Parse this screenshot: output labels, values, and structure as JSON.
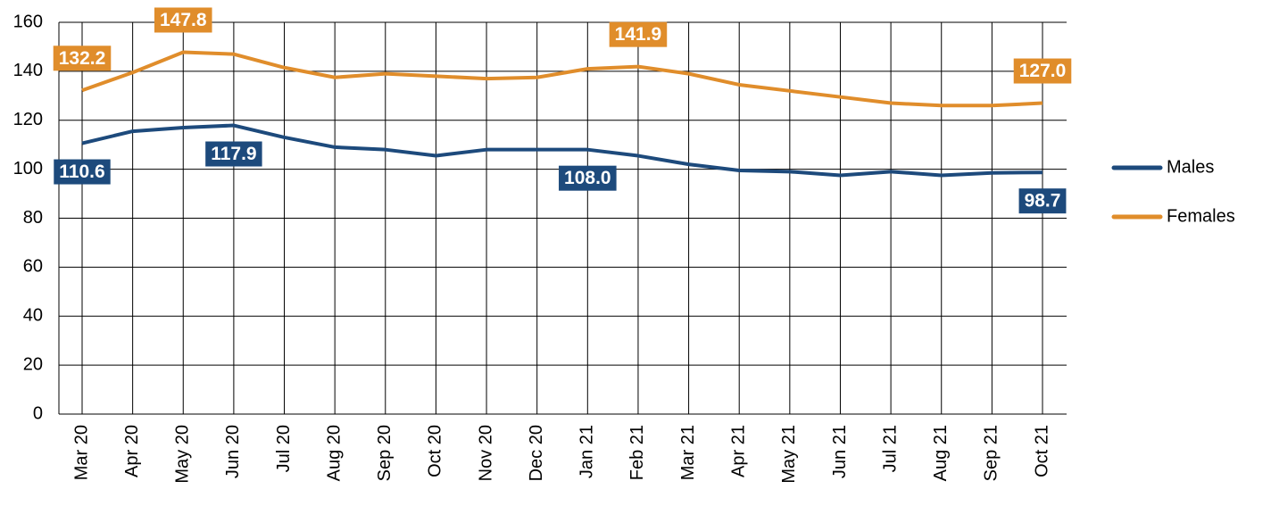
{
  "chart_data": {
    "type": "line",
    "categories": [
      "Mar 20",
      "Apr 20",
      "May 20",
      "Jun 20",
      "Jul 20",
      "Aug 20",
      "Sep 20",
      "Oct 20",
      "Nov 20",
      "Dec 20",
      "Jan 21",
      "Feb 21",
      "Mar 21",
      "Apr 21",
      "May 21",
      "Jun 21",
      "Jul 21",
      "Aug 21",
      "Sep 21",
      "Oct 21"
    ],
    "series": [
      {
        "name": "Males",
        "color": "#1d4a7c",
        "values": [
          110.6,
          115.5,
          117,
          117.9,
          113,
          109,
          108,
          105.5,
          108,
          108,
          108.0,
          105.5,
          102,
          99.5,
          99,
          97.5,
          99,
          97.5,
          98.5,
          98.7
        ],
        "value_labels": [
          "110.6",
          null,
          null,
          "117.9",
          null,
          null,
          null,
          null,
          null,
          null,
          "108.0",
          null,
          null,
          null,
          null,
          null,
          null,
          null,
          null,
          "98.7"
        ]
      },
      {
        "name": "Females",
        "color": "#e08d2b",
        "values": [
          132.2,
          139.5,
          147.8,
          147,
          141.5,
          137.5,
          139,
          138,
          137,
          137.5,
          141,
          141.9,
          139,
          134.5,
          132,
          129.5,
          127,
          126,
          126,
          127.0
        ],
        "value_labels": [
          "132.2",
          null,
          "147.8",
          null,
          null,
          null,
          null,
          null,
          null,
          null,
          null,
          "141.9",
          null,
          null,
          null,
          null,
          null,
          null,
          null,
          "127.0"
        ]
      }
    ],
    "ylim": [
      0,
      160
    ],
    "yticks": [
      0,
      20,
      40,
      60,
      80,
      100,
      120,
      140,
      160
    ],
    "grid": true,
    "legend": "right"
  }
}
